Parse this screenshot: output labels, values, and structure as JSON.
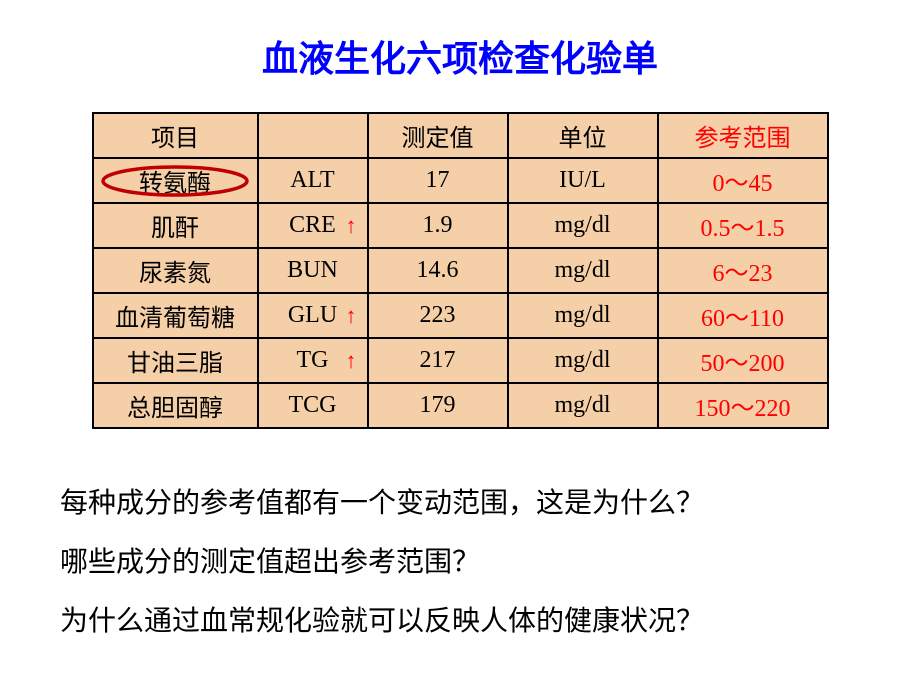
{
  "title": "血液生化六项检查化验单",
  "table": {
    "headers": [
      "项目",
      "",
      "测定值",
      "单位",
      "参考范围"
    ],
    "ref_header_color": "#ff0000",
    "rows": [
      {
        "name": "转氨酶",
        "code": "ALT",
        "value": "17",
        "unit": "IU/L",
        "ref": "0～45",
        "arrow": false,
        "circled": true
      },
      {
        "name": "肌酐",
        "code": "CRE",
        "value": "1.9",
        "unit": "mg/dl",
        "ref": "0.5～1.5",
        "arrow": true,
        "circled": false
      },
      {
        "name": "尿素氮",
        "code": "BUN",
        "value": "14.6",
        "unit": "mg/dl",
        "ref": "6～23",
        "arrow": false,
        "circled": false
      },
      {
        "name": "血清葡萄糖",
        "code": "GLU",
        "value": "223",
        "unit": "mg/dl",
        "ref": "60～110",
        "arrow": true,
        "circled": false
      },
      {
        "name": "甘油三脂",
        "code": "TG",
        "value": "217",
        "unit": "mg/dl",
        "ref": "50～200",
        "arrow": true,
        "circled": false
      },
      {
        "name": "总胆固醇",
        "code": "TCG",
        "value": "179",
        "unit": "mg/dl",
        "ref": "150～220",
        "arrow": false,
        "circled": false
      }
    ],
    "bg_color": "#f4cfa8",
    "border_color": "#000000",
    "ref_color": "#ff0000",
    "arrow_color": "#ff0000",
    "circle_color": "#c00000"
  },
  "questions": [
    "每种成分的参考值都有一个变动范围，这是为什么？",
    "哪些成分的测定值超出参考范围？",
    "为什么通过血常规化验就可以反映人体的健康状况？"
  ]
}
